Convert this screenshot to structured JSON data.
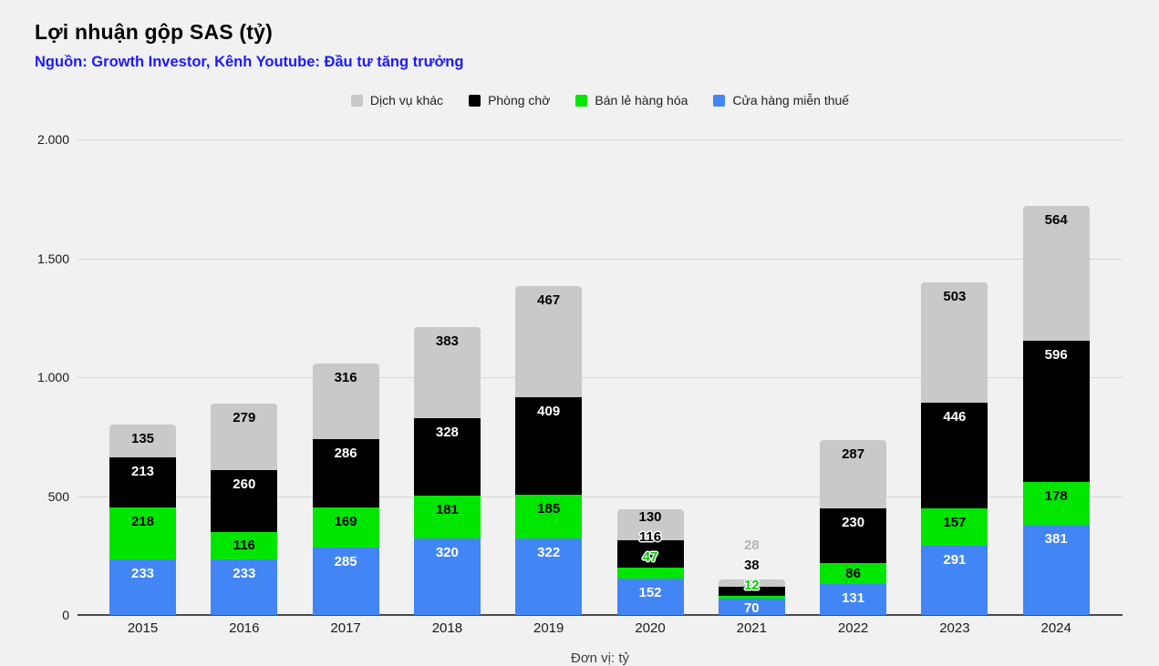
{
  "title": "Lợi nhuận gộp SAS (tỷ)",
  "subtitle": "Nguồn: Growth Investor, Kênh Youtube: Đầu tư tăng trưởng",
  "x_axis_title": "Đơn vị: tỷ",
  "colors": {
    "background": "#f1f1f1",
    "gridline": "#d6d6d6",
    "axis_line": "#4a4a4a",
    "title_text": "#000000",
    "subtitle_text": "#1a1aff",
    "tick_text": "#1a1a1a"
  },
  "chart_data": {
    "type": "bar",
    "stacked": true,
    "title": "Lợi nhuận gộp SAS (tỷ)",
    "xlabel": "",
    "ylabel": "",
    "ylim": [
      0,
      2000
    ],
    "grid": true,
    "legend_position": "top-center",
    "categories": [
      "2015",
      "2016",
      "2017",
      "2018",
      "2019",
      "2020",
      "2021",
      "2022",
      "2023",
      "2024"
    ],
    "yticks": [
      {
        "label": "0",
        "value": 0
      },
      {
        "label": "500",
        "value": 500
      },
      {
        "label": "1.000",
        "value": 1000
      },
      {
        "label": "1.500",
        "value": 1500
      },
      {
        "label": "2.000",
        "value": 2000
      }
    ],
    "series": [
      {
        "key": "cua-hang-mien-thue",
        "name": "Cửa hàng miễn thuế",
        "color": "#4285f4",
        "label_inside": "#ffffff",
        "label_outside": "#4285f4",
        "values": [
          233,
          233,
          285,
          320,
          322,
          152,
          70,
          131,
          291,
          381
        ]
      },
      {
        "key": "ban-le-hang-hoa",
        "name": "Bán lẻ hàng hóa",
        "color": "#00e600",
        "label_inside": "#000000",
        "label_outside": "#00cc00",
        "values": [
          218,
          116,
          169,
          181,
          185,
          47,
          12,
          86,
          157,
          178
        ]
      },
      {
        "key": "phong-cho",
        "name": "Phòng chờ",
        "color": "#000000",
        "label_inside": "#ffffff",
        "label_outside": "#000000",
        "values": [
          213,
          260,
          286,
          328,
          409,
          116,
          38,
          230,
          446,
          596
        ]
      },
      {
        "key": "dich-vu-khac",
        "name": "Dịch vụ khác",
        "color": "#c9c9c9",
        "label_inside": "#000000",
        "label_outside": "#b5b5b5",
        "values": [
          135,
          279,
          316,
          383,
          467,
          130,
          28,
          287,
          503,
          564
        ]
      }
    ],
    "legend_order": [
      "Dịch vụ khác",
      "Phòng chờ",
      "Bán lẻ hàng hóa",
      "Cửa hàng miễn thuế"
    ]
  }
}
